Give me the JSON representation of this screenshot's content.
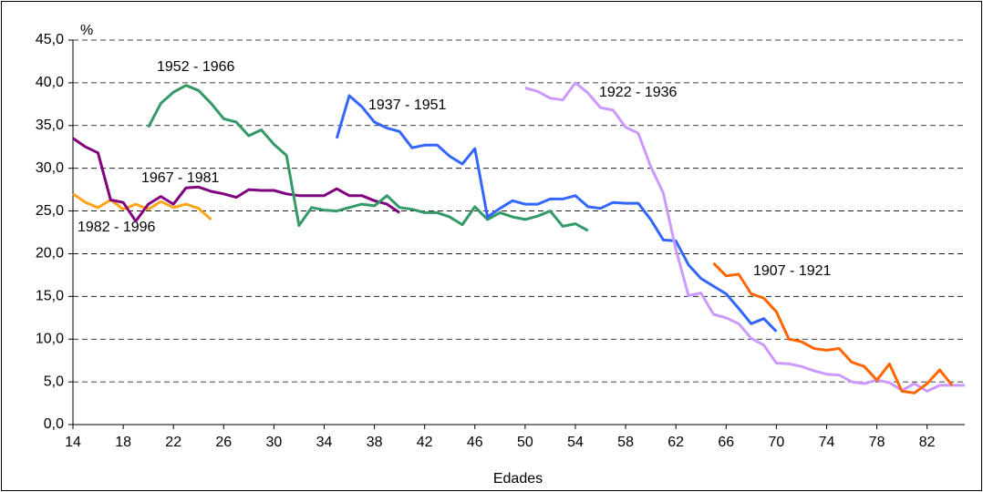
{
  "chart_data": {
    "type": "line",
    "y_label": "%",
    "x_label": "Edades",
    "xlim": [
      14,
      85
    ],
    "xticks": [
      14,
      18,
      22,
      26,
      30,
      34,
      38,
      42,
      46,
      50,
      54,
      58,
      62,
      66,
      70,
      74,
      78,
      82
    ],
    "ylim": [
      0,
      45
    ],
    "yticks": [
      {
        "value": 0,
        "label": "0,0"
      },
      {
        "value": 5,
        "label": "5,0"
      },
      {
        "value": 10,
        "label": "10,0"
      },
      {
        "value": 15,
        "label": "15,0"
      },
      {
        "value": 20,
        "label": "20,0"
      },
      {
        "value": 25,
        "label": "25,0"
      },
      {
        "value": 30,
        "label": "30,0"
      },
      {
        "value": 35,
        "label": "35,0"
      },
      {
        "value": 40,
        "label": "40,0"
      },
      {
        "value": 45,
        "label": "45,0"
      }
    ],
    "grid": true,
    "series": [
      {
        "name": "1982 - 1996",
        "color": "#ffa31a",
        "x": [
          14,
          15,
          16,
          17,
          18,
          19,
          20,
          21,
          22,
          23,
          24,
          25
        ],
        "values": [
          27.0,
          26.0,
          25.4,
          26.3,
          25.2,
          25.8,
          25.2,
          26.1,
          25.4,
          25.8,
          25.3,
          24.0
        ]
      },
      {
        "name": "1967 - 1981",
        "color": "#800080",
        "x": [
          14,
          15,
          16,
          17,
          18,
          19,
          20,
          21,
          22,
          23,
          24,
          25,
          26,
          27,
          28,
          29,
          30,
          31,
          32,
          33,
          34,
          35,
          36,
          37,
          38,
          39,
          40
        ],
        "values": [
          33.5,
          32.5,
          31.8,
          26.3,
          26.0,
          23.8,
          25.8,
          26.7,
          25.8,
          27.7,
          27.8,
          27.3,
          27.0,
          26.6,
          27.5,
          27.4,
          27.4,
          27.0,
          26.8,
          26.8,
          26.8,
          27.6,
          26.8,
          26.8,
          26.2,
          25.8,
          24.8
        ]
      },
      {
        "name": "1952 - 1966",
        "color": "#339966",
        "x": [
          20,
          21,
          22,
          23,
          24,
          25,
          26,
          27,
          28,
          29,
          30,
          31,
          32,
          33,
          34,
          35,
          36,
          37,
          38,
          39,
          40,
          41,
          42,
          43,
          44,
          45,
          46,
          47,
          48,
          49,
          50,
          51,
          52,
          53,
          54,
          55
        ],
        "values": [
          34.8,
          37.6,
          38.9,
          39.7,
          39.1,
          37.6,
          35.8,
          35.4,
          33.8,
          34.5,
          32.8,
          31.5,
          23.3,
          25.4,
          25.1,
          25.0,
          25.4,
          25.8,
          25.6,
          26.8,
          25.4,
          25.2,
          24.8,
          24.8,
          24.3,
          23.4,
          25.5,
          24.0,
          24.8,
          24.3,
          24.0,
          24.4,
          25.0,
          23.2,
          23.5,
          22.7
        ]
      },
      {
        "name": "1937 - 1951",
        "color": "#3366ff",
        "x": [
          35,
          36,
          37,
          38,
          39,
          40,
          41,
          42,
          43,
          44,
          45,
          46,
          47,
          48,
          49,
          50,
          51,
          52,
          53,
          54,
          55,
          56,
          57,
          58,
          59,
          60,
          61,
          62,
          63,
          64,
          65,
          66,
          67,
          68,
          69,
          70
        ],
        "values": [
          33.5,
          38.5,
          37.2,
          35.4,
          34.7,
          34.3,
          32.4,
          32.7,
          32.7,
          31.4,
          30.5,
          32.3,
          24.3,
          25.3,
          26.2,
          25.8,
          25.8,
          26.4,
          26.4,
          26.8,
          25.5,
          25.3,
          26.0,
          25.9,
          25.9,
          24.0,
          21.6,
          21.5,
          18.7,
          17.1,
          16.2,
          15.3,
          13.6,
          11.8,
          12.4,
          10.9
        ]
      },
      {
        "name": "1922 - 1936",
        "color": "#cc99ff",
        "x": [
          50,
          51,
          52,
          53,
          54,
          55,
          56,
          57,
          58,
          59,
          60,
          61,
          62,
          63,
          64,
          65,
          66,
          67,
          68,
          69,
          70,
          71,
          72,
          73,
          74,
          75,
          76,
          77,
          78,
          79,
          80,
          81,
          82,
          83,
          84,
          85
        ],
        "values": [
          39.4,
          39.0,
          38.2,
          38.0,
          40.0,
          38.8,
          37.1,
          36.8,
          34.8,
          34.1,
          30.2,
          27.1,
          20.5,
          15.1,
          15.4,
          12.9,
          12.5,
          11.8,
          10.1,
          9.3,
          7.2,
          7.1,
          6.8,
          6.3,
          5.9,
          5.8,
          5.0,
          4.8,
          5.2,
          4.9,
          4.0,
          4.8,
          3.9,
          4.6,
          4.6,
          4.6
        ]
      },
      {
        "name": "1907 - 1921",
        "color": "#ff6600",
        "x": [
          65,
          66,
          67,
          68,
          69,
          70,
          71,
          72,
          73,
          74,
          75,
          76,
          77,
          78,
          79,
          80,
          81,
          82,
          83,
          84
        ],
        "values": [
          18.9,
          17.4,
          17.6,
          15.3,
          14.8,
          13.2,
          10.0,
          9.7,
          8.9,
          8.7,
          8.9,
          7.3,
          6.8,
          5.2,
          7.1,
          3.9,
          3.7,
          4.8,
          6.4,
          4.6
        ]
      }
    ]
  }
}
